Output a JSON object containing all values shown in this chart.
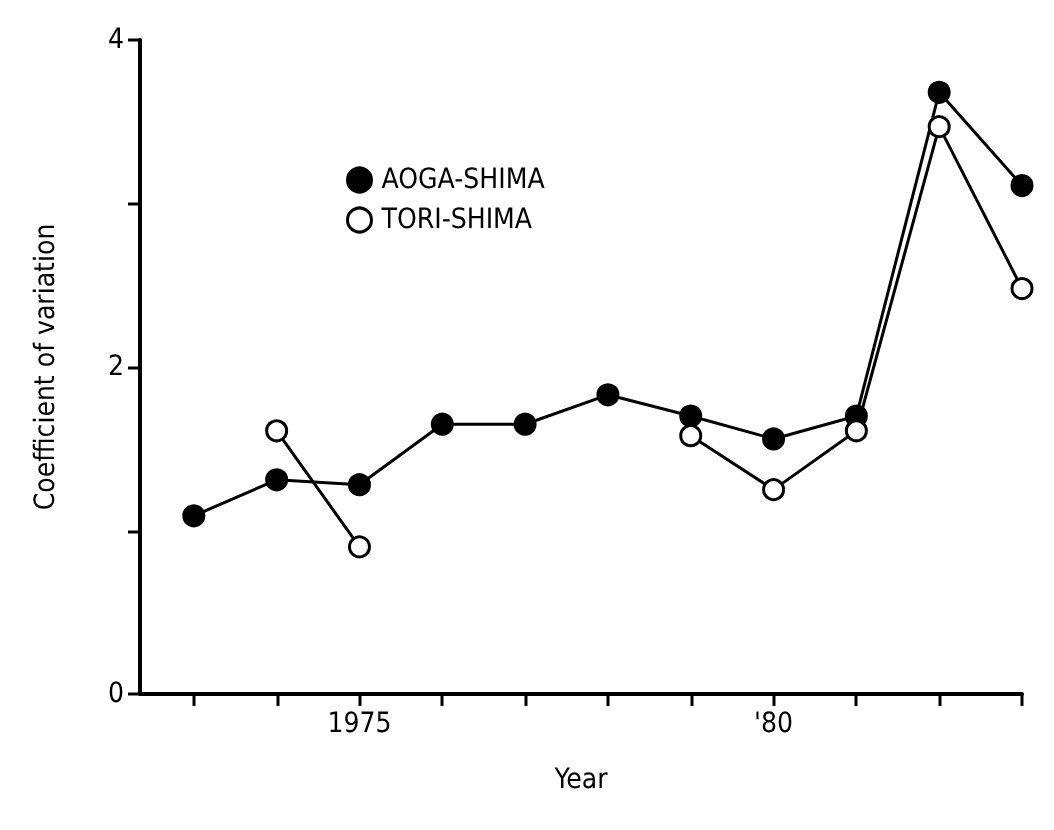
{
  "chart_data": {
    "type": "line",
    "xlabel": "Year",
    "ylabel": "Coefficient of variation",
    "x": [
      1973,
      1974,
      1975,
      1976,
      1977,
      1978,
      1979,
      1980,
      1981,
      1982,
      1983
    ],
    "series": [
      {
        "name": "AOGA-SHIMA",
        "color": "#000000",
        "values": [
          1.09,
          1.31,
          1.28,
          1.65,
          1.65,
          1.83,
          1.7,
          1.56,
          1.7,
          3.68,
          3.11
        ]
      },
      {
        "name": "TORI-SHIMA",
        "color": "#ffffff",
        "values": [
          null,
          1.61,
          0.9,
          null,
          null,
          null,
          1.58,
          1.25,
          1.61,
          3.47,
          2.48
        ]
      }
    ],
    "xlim": [
      1972.35,
      1983
    ],
    "xticks": [
      {
        "value": 1973,
        "label": null
      },
      {
        "value": 1974,
        "label": null
      },
      {
        "value": 1975,
        "label": "1975"
      },
      {
        "value": 1976,
        "label": null
      },
      {
        "value": 1977,
        "label": null
      },
      {
        "value": 1978,
        "label": null
      },
      {
        "value": 1979,
        "label": null
      },
      {
        "value": 1980,
        "label": "'80"
      },
      {
        "value": 1981,
        "label": null
      },
      {
        "value": 1982,
        "label": null
      },
      {
        "value": 1983,
        "label": null
      }
    ],
    "ylim": [
      0,
      4
    ],
    "yticks": [
      0,
      {
        "value": 1,
        "label": null
      },
      2,
      {
        "value": 3,
        "label": null
      },
      4
    ],
    "marker": "circle",
    "line_style": "solid",
    "grid": false,
    "legend": "top left"
  }
}
